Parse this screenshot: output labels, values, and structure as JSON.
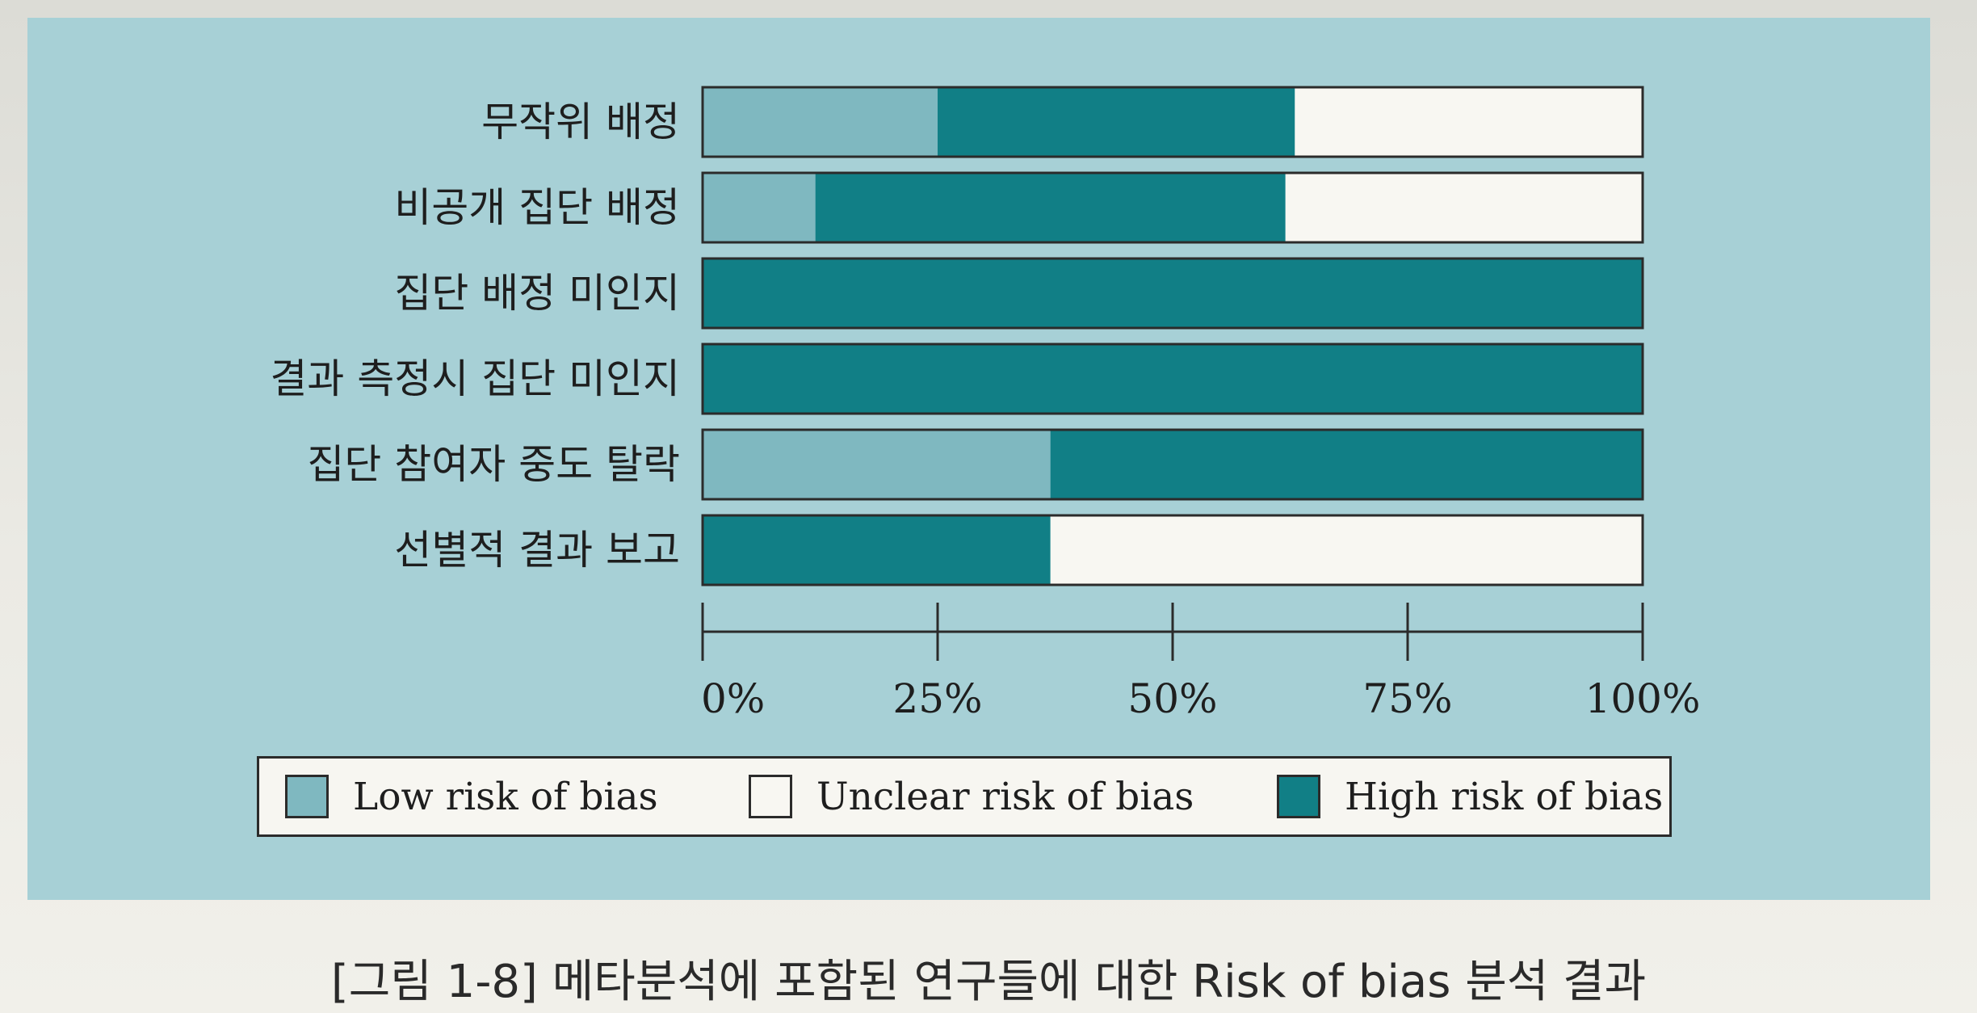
{
  "colors": {
    "low": "#7fb8c0",
    "unclear": "#f8f7f2",
    "high": "#117f86",
    "panel": "#a7d0d6"
  },
  "chart_data": {
    "type": "bar",
    "orientation": "horizontal",
    "stacked": true,
    "categories": [
      "무작위 배정",
      "비공개 집단 배정",
      "집단 배정 미인지",
      "결과 측정시 집단 미인지",
      "집단 참여자 중도 탈락",
      "선별적 결과 보고"
    ],
    "series": [
      {
        "name": "Low risk of bias",
        "color": "#7fb8c0",
        "values": [
          25,
          12,
          0,
          0,
          37,
          0
        ]
      },
      {
        "name": "Unclear risk of bias",
        "color": "#f8f7f2",
        "values": [
          37,
          38,
          0,
          0,
          0,
          63
        ]
      },
      {
        "name": "High risk of bias",
        "color": "#117f86",
        "values": [
          38,
          50,
          100,
          100,
          63,
          37
        ]
      }
    ],
    "series_order": [
      0,
      2,
      1
    ],
    "xlim": [
      0,
      100
    ],
    "x_ticks": [
      "0%",
      "25%",
      "50%",
      "75%",
      "100%"
    ],
    "legend_position": "bottom"
  },
  "legend": {
    "items": [
      {
        "label": "Low risk of bias",
        "color": "#7fb8c0"
      },
      {
        "label": "Unclear risk of bias",
        "color": "#f8f7f2"
      },
      {
        "label": "High risk of bias",
        "color": "#117f86"
      }
    ]
  },
  "caption": "[그림 1-8]  메타분석에 포함된 연구들에 대한 Risk of bias 분석 결과"
}
